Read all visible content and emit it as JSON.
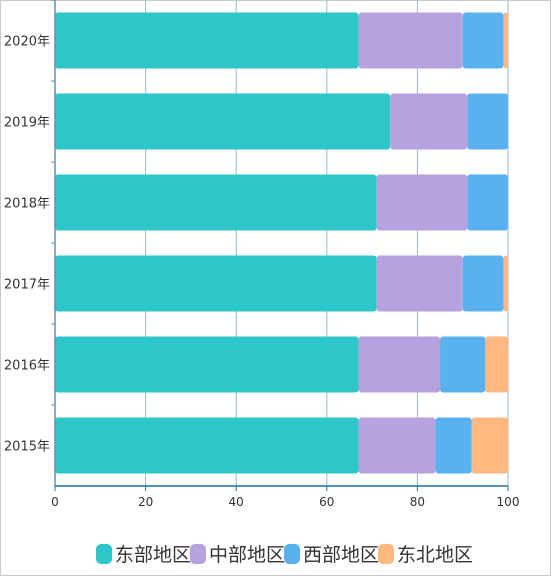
{
  "chart_data": {
    "type": "bar",
    "orientation": "horizontal",
    "stacked": true,
    "categories": [
      "2020年",
      "2019年",
      "2018年",
      "2017年",
      "2016年",
      "2015年"
    ],
    "series": [
      {
        "name": "东部地区",
        "color": "#2ec7c9",
        "values": [
          67,
          74,
          71,
          71,
          67,
          67
        ]
      },
      {
        "name": "中部地区",
        "color": "#b6a2de",
        "values": [
          23,
          17,
          20,
          19,
          18,
          17
        ]
      },
      {
        "name": "西部地区",
        "color": "#5ab1ef",
        "values": [
          9,
          9,
          9,
          9,
          10,
          8
        ]
      },
      {
        "name": "东北地区",
        "color": "#ffb980",
        "values": [
          1,
          0,
          0,
          1,
          5,
          8
        ]
      }
    ],
    "xlim": [
      0,
      100
    ],
    "xticks": [
      0,
      20,
      40,
      60,
      80,
      100
    ],
    "xlabel": "",
    "ylabel": "",
    "title": "",
    "grid": true,
    "legend_position": "bottom"
  }
}
